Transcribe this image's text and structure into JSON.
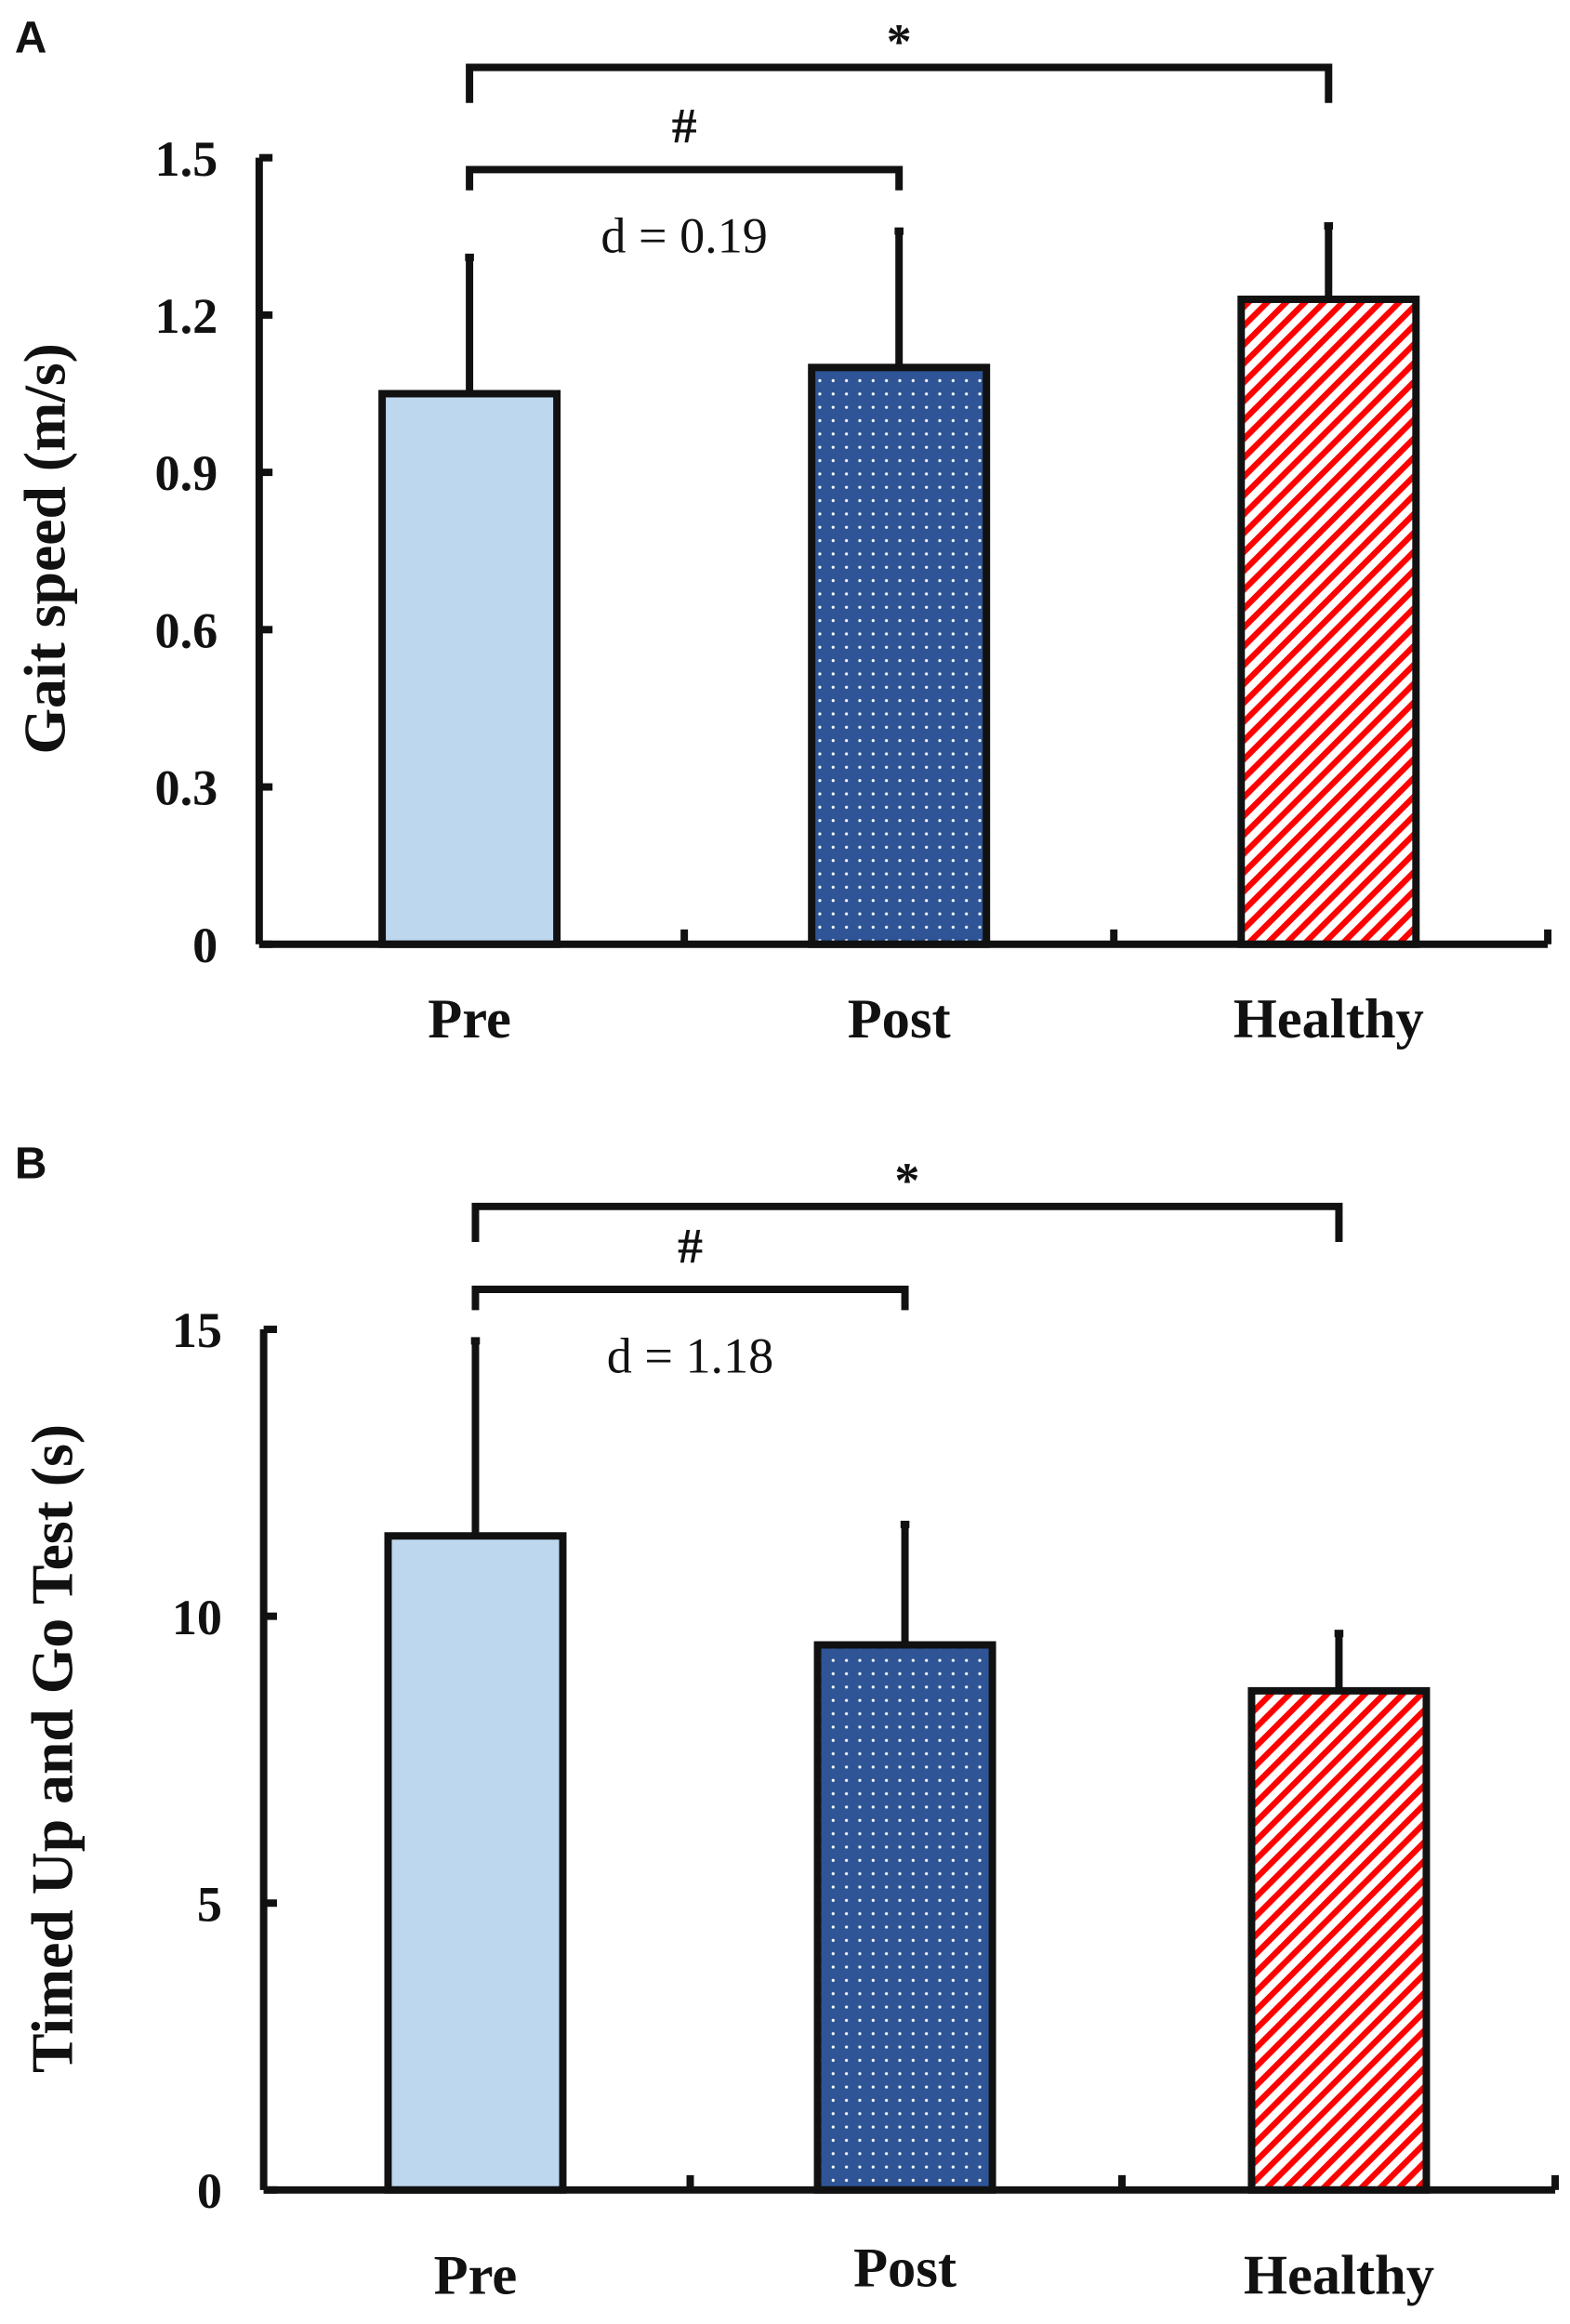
{
  "chart_data": [
    {
      "type": "bar",
      "panel_label": "A",
      "title": "",
      "xlabel": "",
      "ylabel": "Gait speed (m/s)",
      "categories": [
        "Pre",
        "Post",
        "Healthy"
      ],
      "values": [
        1.05,
        1.1,
        1.23
      ],
      "error_upper": [
        1.31,
        1.36,
        1.37
      ],
      "ylim": [
        0,
        1.5
      ],
      "yticks": [
        0,
        0.3,
        0.6,
        0.9,
        1.2,
        1.5
      ],
      "ytick_labels": [
        "0",
        "0.3",
        "0.6",
        "0.9",
        "1.2",
        "1.5"
      ],
      "grid": false,
      "colors": [
        "#bdd7ee",
        "#2f5597",
        "#ff0000"
      ],
      "fills": [
        "solid",
        "dots",
        "stripes"
      ],
      "annotations": {
        "star": "*",
        "hash": "#",
        "effect": "d = 0.19"
      }
    },
    {
      "type": "bar",
      "panel_label": "B",
      "title": "",
      "xlabel": "",
      "ylabel": "Timed Up and Go Test (s)",
      "categories": [
        "Pre",
        "Post",
        "Healthy"
      ],
      "values": [
        11.4,
        9.5,
        8.7
      ],
      "error_upper": [
        14.8,
        11.6,
        9.7
      ],
      "ylim": [
        0,
        15
      ],
      "yticks": [
        0,
        5,
        10,
        15
      ],
      "ytick_labels": [
        "0",
        "5",
        "10",
        "15"
      ],
      "grid": false,
      "colors": [
        "#bdd7ee",
        "#2f5597",
        "#ff0000"
      ],
      "fills": [
        "solid",
        "dots",
        "stripes"
      ],
      "annotations": {
        "star": "*",
        "hash": "#",
        "effect": "d = 1.18"
      }
    }
  ]
}
